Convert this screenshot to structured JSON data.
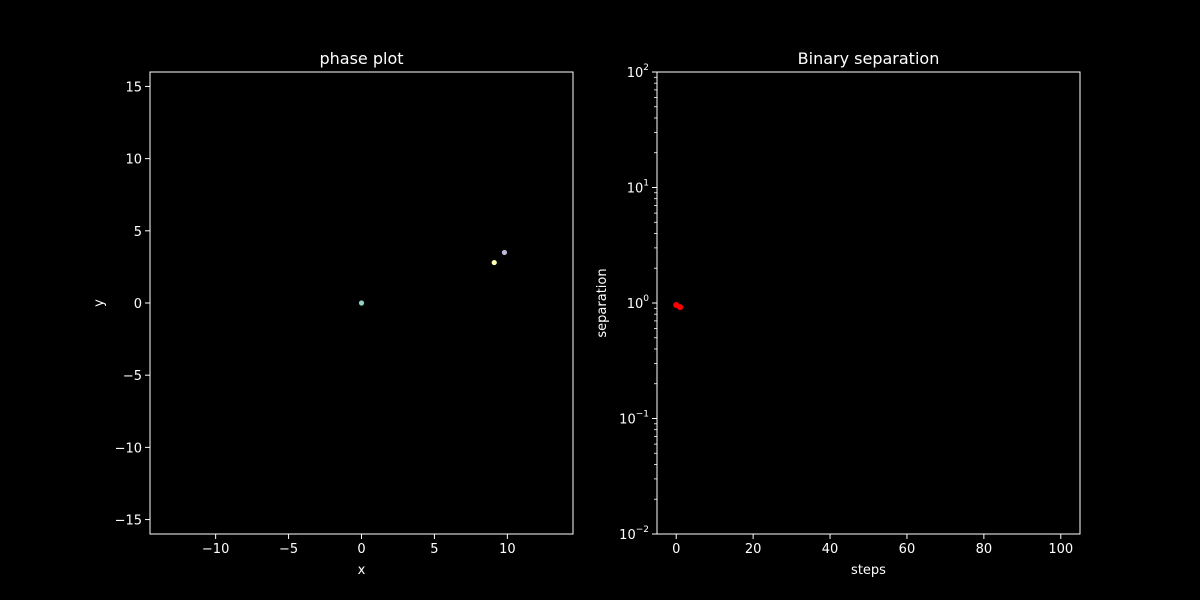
{
  "chart_data": [
    {
      "type": "scatter",
      "title": "phase plot",
      "xlabel": "x",
      "ylabel": "y",
      "xlim": [
        -14.5,
        14.5
      ],
      "ylim": [
        -16,
        16
      ],
      "xticks": [
        -10,
        -5,
        0,
        5,
        10
      ],
      "xtick_labels": [
        "−10",
        "−5",
        "0",
        "5",
        "10"
      ],
      "yticks": [
        -15,
        -10,
        -5,
        0,
        5,
        10,
        15
      ],
      "ytick_labels": [
        "−15",
        "−10",
        "−5",
        "0",
        "5",
        "10",
        "15"
      ],
      "grid": false,
      "series": [
        {
          "color": "#8dd3c7",
          "points": [
            [
              0.0,
              0.0
            ]
          ]
        },
        {
          "color": "#ffffb3",
          "points": [
            [
              9.1,
              2.8
            ]
          ]
        },
        {
          "color": "#bebada",
          "points": [
            [
              9.8,
              3.5
            ]
          ]
        }
      ]
    },
    {
      "type": "line",
      "title": "Binary separation",
      "xlabel": "steps",
      "ylabel": "separation",
      "yscale": "log",
      "xlim": [
        -5,
        105
      ],
      "ylim": [
        0.01,
        100
      ],
      "xticks": [
        0,
        20,
        40,
        60,
        80,
        100
      ],
      "xtick_labels": [
        "0",
        "20",
        "40",
        "60",
        "80",
        "100"
      ],
      "yticks": [
        0.01,
        0.1,
        1,
        10,
        100
      ],
      "ytick_labels": [
        {
          "base": "10",
          "exp": "−2"
        },
        {
          "base": "10",
          "exp": "−1"
        },
        {
          "base": "10",
          "exp": "0"
        },
        {
          "base": "10",
          "exp": "1"
        },
        {
          "base": "10",
          "exp": "2"
        }
      ],
      "grid": false,
      "series": [
        {
          "color": "#ff0000",
          "x": [
            0,
            1
          ],
          "y": [
            0.96,
            0.92
          ]
        }
      ]
    }
  ],
  "style": {
    "background": "#000000",
    "foreground": "#ffffff"
  }
}
